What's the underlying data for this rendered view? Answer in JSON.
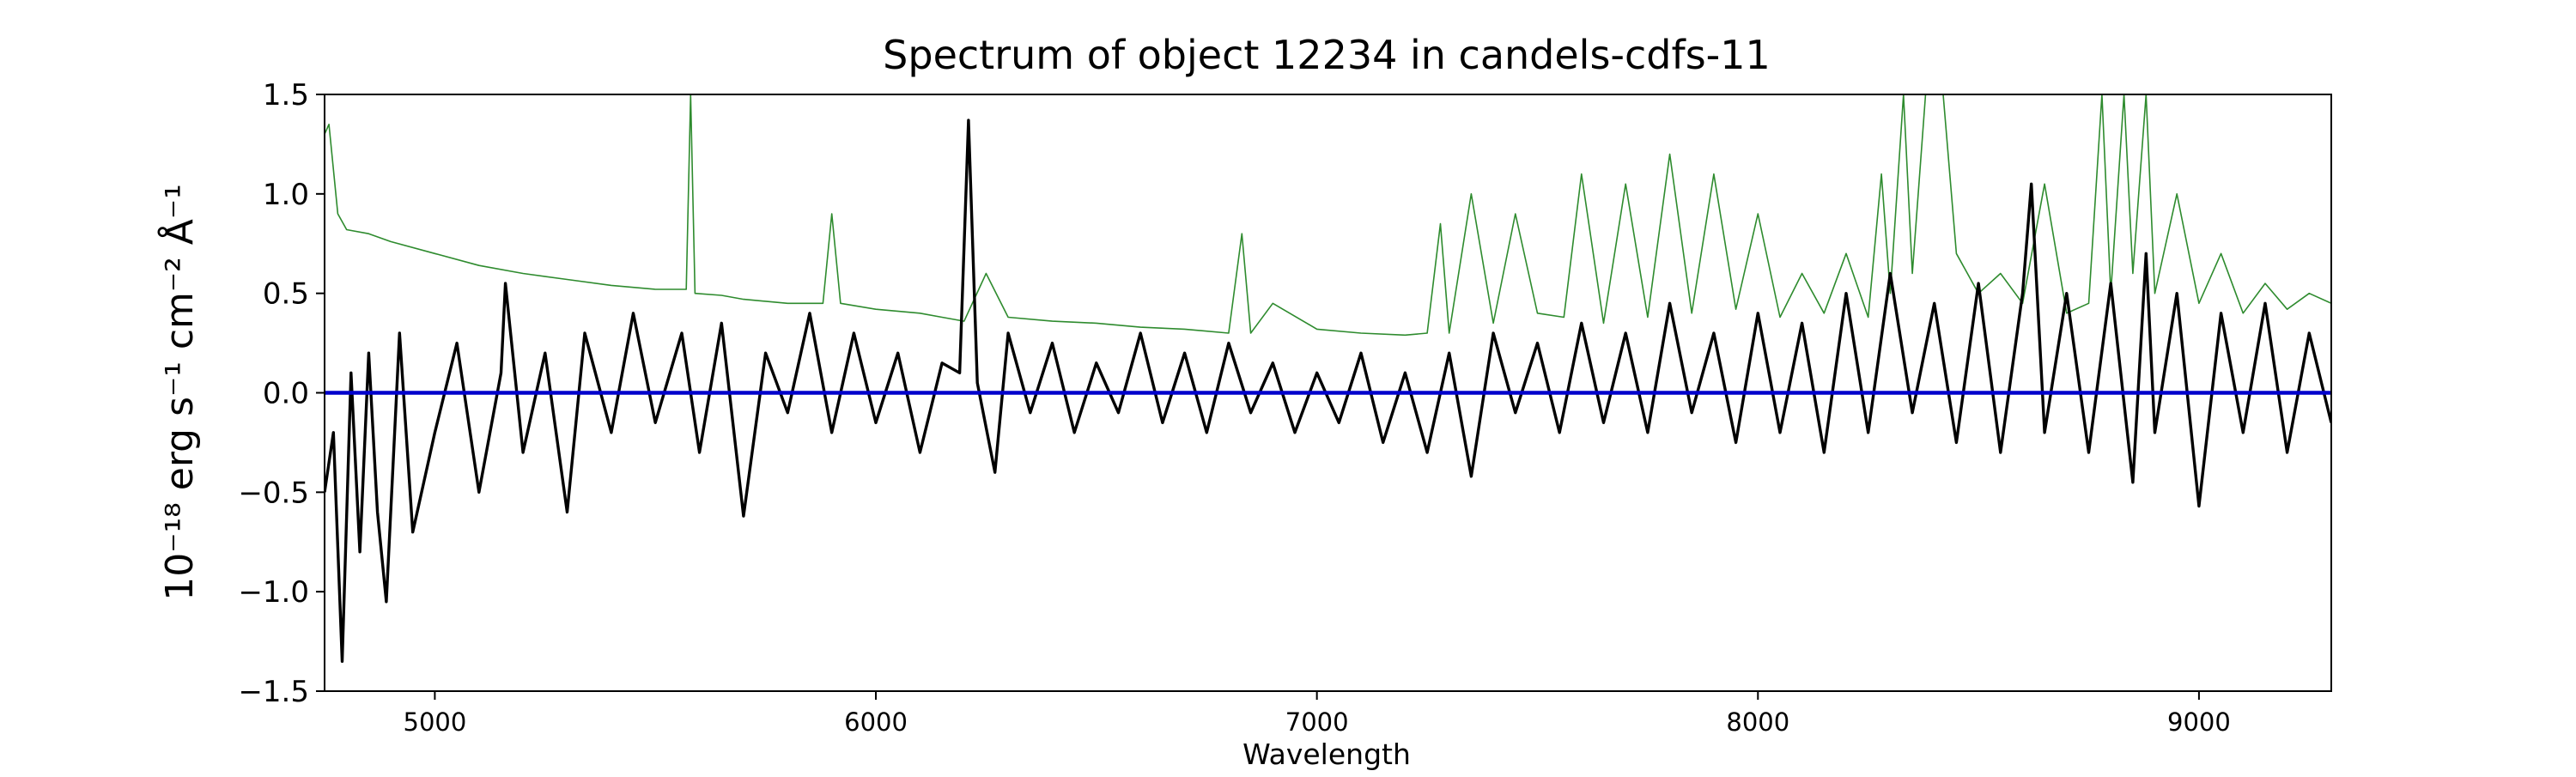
{
  "chart_data": {
    "type": "line",
    "title": "Spectrum of object 12234 in candels-cdfs-11",
    "xlabel": "Wavelength",
    "ylabel": "10⁻¹⁸ erg s⁻¹ cm⁻² Å⁻¹",
    "xlim": [
      4750,
      9300
    ],
    "ylim": [
      -1.5,
      1.5
    ],
    "xticks": [
      5000,
      6000,
      7000,
      8000,
      9000
    ],
    "xtick_labels": [
      "5000",
      "6000",
      "7000",
      "8000",
      "9000"
    ],
    "yticks": [
      1.5,
      1.0,
      0.5,
      0.0,
      -0.5,
      -1.0,
      -1.5
    ],
    "ytick_labels": [
      "1.5",
      "1.0",
      "0.5",
      "0.0",
      "−0.5",
      "−1.0",
      "−1.5"
    ],
    "grid": false,
    "legend": false,
    "colors": {
      "flux": "#000000",
      "model": "#2e8b2e",
      "zero": "#0000cc"
    },
    "series": [
      {
        "key": "flux",
        "style": "noisy black flux spectrum",
        "x": [
          4750,
          4770,
          4790,
          4810,
          4830,
          4850,
          4870,
          4890,
          4920,
          4950,
          5000,
          5050,
          5100,
          5150,
          5160,
          5200,
          5250,
          5300,
          5340,
          5400,
          5450,
          5500,
          5560,
          5600,
          5650,
          5700,
          5750,
          5800,
          5850,
          5900,
          5950,
          6000,
          6050,
          6100,
          6150,
          6190,
          6210,
          6230,
          6270,
          6300,
          6350,
          6400,
          6450,
          6500,
          6550,
          6600,
          6650,
          6700,
          6750,
          6800,
          6850,
          6900,
          6950,
          7000,
          7050,
          7100,
          7150,
          7200,
          7250,
          7300,
          7350,
          7400,
          7450,
          7500,
          7550,
          7600,
          7650,
          7700,
          7750,
          7800,
          7850,
          7900,
          7950,
          8000,
          8050,
          8100,
          8150,
          8200,
          8250,
          8300,
          8350,
          8400,
          8450,
          8500,
          8550,
          8600,
          8620,
          8650,
          8700,
          8750,
          8800,
          8850,
          8880,
          8900,
          8950,
          9000,
          9050,
          9100,
          9150,
          9200,
          9250,
          9300
        ],
        "y": [
          -0.5,
          -0.2,
          -1.35,
          0.1,
          -0.8,
          0.2,
          -0.6,
          -1.05,
          0.3,
          -0.7,
          -0.2,
          0.25,
          -0.5,
          0.1,
          0.55,
          -0.3,
          0.2,
          -0.6,
          0.3,
          -0.2,
          0.4,
          -0.15,
          0.3,
          -0.3,
          0.35,
          -0.62,
          0.2,
          -0.1,
          0.4,
          -0.2,
          0.3,
          -0.15,
          0.2,
          -0.3,
          0.15,
          0.1,
          1.37,
          0.05,
          -0.4,
          0.3,
          -0.1,
          0.25,
          -0.2,
          0.15,
          -0.1,
          0.3,
          -0.15,
          0.2,
          -0.2,
          0.25,
          -0.1,
          0.15,
          -0.2,
          0.1,
          -0.15,
          0.2,
          -0.25,
          0.1,
          -0.3,
          0.2,
          -0.42,
          0.3,
          -0.1,
          0.25,
          -0.2,
          0.35,
          -0.15,
          0.3,
          -0.2,
          0.45,
          -0.1,
          0.3,
          -0.25,
          0.4,
          -0.2,
          0.35,
          -0.3,
          0.5,
          -0.2,
          0.6,
          -0.1,
          0.45,
          -0.25,
          0.55,
          -0.3,
          0.5,
          1.05,
          -0.2,
          0.5,
          -0.3,
          0.55,
          -0.45,
          0.7,
          -0.2,
          0.5,
          -0.57,
          0.4,
          -0.2,
          0.45,
          -0.3,
          0.3,
          -0.15
        ]
      },
      {
        "key": "model",
        "style": "thin green model spectrum",
        "x": [
          4750,
          4760,
          4780,
          4800,
          4850,
          4900,
          5000,
          5100,
          5200,
          5300,
          5400,
          5500,
          5570,
          5580,
          5590,
          5650,
          5700,
          5800,
          5880,
          5900,
          5920,
          6000,
          6100,
          6150,
          6200,
          6250,
          6300,
          6400,
          6500,
          6600,
          6700,
          6800,
          6830,
          6850,
          6900,
          7000,
          7100,
          7200,
          7250,
          7280,
          7300,
          7350,
          7400,
          7450,
          7500,
          7560,
          7600,
          7650,
          7700,
          7750,
          7800,
          7850,
          7900,
          7950,
          8000,
          8050,
          8100,
          8150,
          8200,
          8250,
          8280,
          8300,
          8330,
          8350,
          8380,
          8420,
          8450,
          8500,
          8550,
          8600,
          8650,
          8700,
          8750,
          8780,
          8800,
          8830,
          8850,
          8880,
          8900,
          8950,
          9000,
          9050,
          9100,
          9150,
          9200,
          9250,
          9300
        ],
        "y": [
          1.3,
          1.35,
          0.9,
          0.82,
          0.8,
          0.76,
          0.7,
          0.64,
          0.6,
          0.57,
          0.54,
          0.52,
          0.52,
          1.5,
          0.5,
          0.49,
          0.47,
          0.45,
          0.45,
          0.9,
          0.45,
          0.42,
          0.4,
          0.38,
          0.36,
          0.6,
          0.38,
          0.36,
          0.35,
          0.33,
          0.32,
          0.3,
          0.8,
          0.3,
          0.45,
          0.32,
          0.3,
          0.29,
          0.3,
          0.85,
          0.3,
          1.0,
          0.35,
          0.9,
          0.4,
          0.38,
          1.1,
          0.35,
          1.05,
          0.38,
          1.2,
          0.4,
          1.1,
          0.42,
          0.9,
          0.38,
          0.6,
          0.4,
          0.7,
          0.38,
          1.1,
          0.5,
          1.5,
          0.6,
          1.5,
          1.5,
          0.7,
          0.5,
          0.6,
          0.45,
          1.05,
          0.4,
          0.45,
          1.5,
          0.5,
          1.5,
          0.6,
          1.5,
          0.5,
          1.0,
          0.45,
          0.7,
          0.4,
          0.55,
          0.42,
          0.5,
          0.45
        ]
      },
      {
        "key": "zero",
        "style": "blue zero reference line",
        "x": [
          4750,
          9300
        ],
        "y": [
          0.0,
          0.0
        ]
      }
    ]
  }
}
